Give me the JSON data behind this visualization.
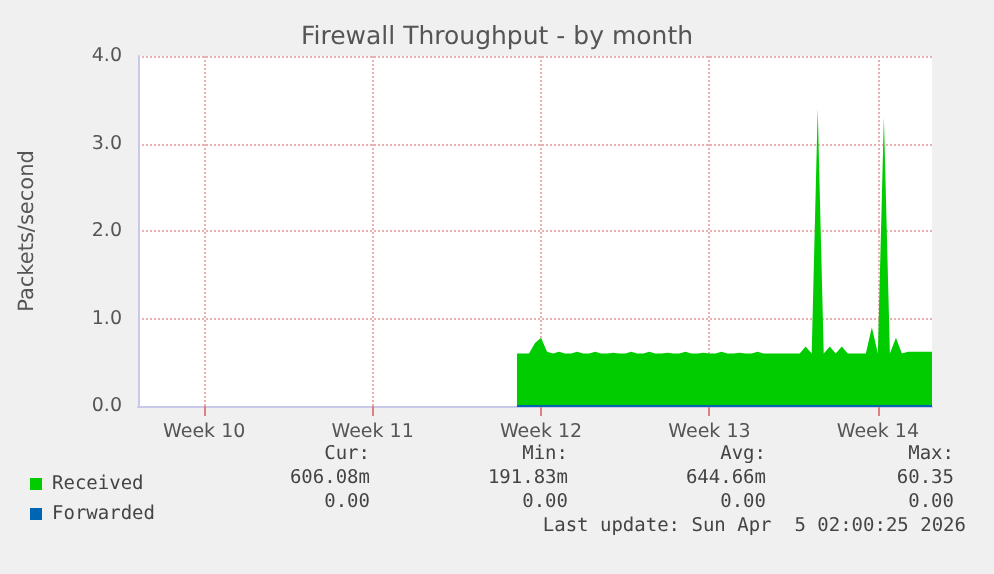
{
  "chart_data": {
    "type": "area",
    "title": "Firewall Throughput - by month",
    "ylabel": "Packets/second",
    "categories": [
      null,
      null,
      null,
      null,
      null,
      null,
      null,
      null,
      null,
      null,
      null,
      "Week 10",
      null,
      null,
      null,
      null,
      null,
      null,
      null,
      null,
      null,
      null,
      null,
      null,
      null,
      null,
      null,
      null,
      null,
      null,
      null,
      null,
      null,
      null,
      null,
      null,
      null,
      null,
      null,
      "Week 11",
      null,
      null,
      null,
      null,
      null,
      null,
      null,
      null,
      null,
      null,
      null,
      null,
      null,
      null,
      null,
      null,
      null,
      null,
      null,
      null,
      null,
      null,
      null,
      null,
      null,
      null,
      null,
      "Week 12",
      null,
      null,
      null,
      null,
      null,
      null,
      null,
      null,
      null,
      null,
      null,
      null,
      null,
      null,
      null,
      null,
      null,
      null,
      null,
      null,
      null,
      null,
      null,
      null,
      null,
      null,
      null,
      "Week 13",
      null,
      null,
      null,
      null,
      null,
      null,
      null,
      null,
      null,
      null,
      null,
      null,
      null,
      null,
      null,
      null,
      null,
      null,
      null,
      null,
      null,
      null,
      null,
      null,
      null,
      null,
      null,
      "Week 14",
      null,
      null,
      null,
      null,
      null,
      null,
      null,
      null,
      null
    ],
    "ylim": [
      0,
      4
    ],
    "yticks": [
      {
        "value": 0,
        "label": "0.0"
      },
      {
        "value": 1,
        "label": "1.0"
      },
      {
        "value": 2,
        "label": "2.0"
      },
      {
        "value": 3,
        "label": "3.0"
      },
      {
        "value": 4,
        "label": "4.0"
      }
    ],
    "grid": true,
    "legend": "bottom left",
    "marker": "none",
    "series": [
      {
        "name": "Received",
        "color": "#00cc00",
        "values": [
          null,
          null,
          null,
          null,
          null,
          null,
          null,
          null,
          null,
          null,
          null,
          null,
          null,
          null,
          null,
          null,
          null,
          null,
          null,
          null,
          null,
          null,
          null,
          null,
          null,
          null,
          null,
          null,
          null,
          null,
          null,
          null,
          null,
          null,
          null,
          null,
          null,
          null,
          null,
          null,
          null,
          null,
          null,
          null,
          null,
          null,
          null,
          null,
          null,
          null,
          null,
          null,
          null,
          null,
          null,
          null,
          null,
          null,
          null,
          null,
          null,
          null,
          null,
          0.6,
          0.6,
          0.6,
          0.72,
          0.78,
          0.62,
          0.6,
          0.62,
          0.6,
          0.6,
          0.62,
          0.6,
          0.6,
          0.62,
          0.6,
          0.6,
          0.61,
          0.6,
          0.6,
          0.62,
          0.6,
          0.6,
          0.62,
          0.6,
          0.6,
          0.61,
          0.6,
          0.6,
          0.62,
          0.6,
          0.6,
          0.61,
          0.6,
          0.6,
          0.62,
          0.6,
          0.6,
          0.61,
          0.6,
          0.6,
          0.62,
          0.6,
          0.6,
          0.6,
          0.6,
          0.6,
          0.6,
          0.6,
          0.68,
          0.6,
          3.4,
          0.6,
          0.68,
          0.6,
          0.68,
          0.6,
          0.6,
          0.6,
          0.6,
          0.9,
          0.6,
          3.3,
          0.6,
          0.78,
          0.6,
          0.62,
          0.62,
          0.62,
          0.62,
          0.62
        ]
      },
      {
        "name": "Forwarded",
        "color": "#0066b3",
        "type": "line",
        "values": [
          null,
          null,
          null,
          null,
          null,
          null,
          null,
          null,
          null,
          null,
          null,
          null,
          null,
          null,
          null,
          null,
          null,
          null,
          null,
          null,
          null,
          null,
          null,
          null,
          null,
          null,
          null,
          null,
          null,
          null,
          null,
          null,
          null,
          null,
          null,
          null,
          null,
          null,
          null,
          null,
          null,
          null,
          null,
          null,
          null,
          null,
          null,
          null,
          null,
          null,
          null,
          null,
          null,
          null,
          null,
          null,
          null,
          null,
          null,
          null,
          null,
          null,
          null,
          0,
          0,
          0,
          0,
          0,
          0,
          0,
          0,
          0,
          0,
          0,
          0,
          0,
          0,
          0,
          0,
          0,
          0,
          0,
          0,
          0,
          0,
          0,
          0,
          0,
          0,
          0,
          0,
          0,
          0,
          0,
          0,
          0,
          0,
          0,
          0,
          0,
          0,
          0,
          0,
          0,
          0,
          0,
          0,
          0,
          0,
          0,
          0,
          0,
          0,
          0,
          0,
          0,
          0,
          0,
          0,
          0,
          0,
          0,
          0,
          0,
          0,
          0,
          0,
          0,
          0,
          0,
          0,
          0,
          0
        ]
      }
    ],
    "annotations": [
      "Cur:",
      "Min:",
      "Avg:",
      "Max:",
      "606.08m",
      "191.83m",
      "644.66m",
      "60.35",
      "0.00",
      "0.00",
      "0.00",
      "0.00",
      "Last update: Sun Apr  5 02:00:25 2026"
    ]
  }
}
